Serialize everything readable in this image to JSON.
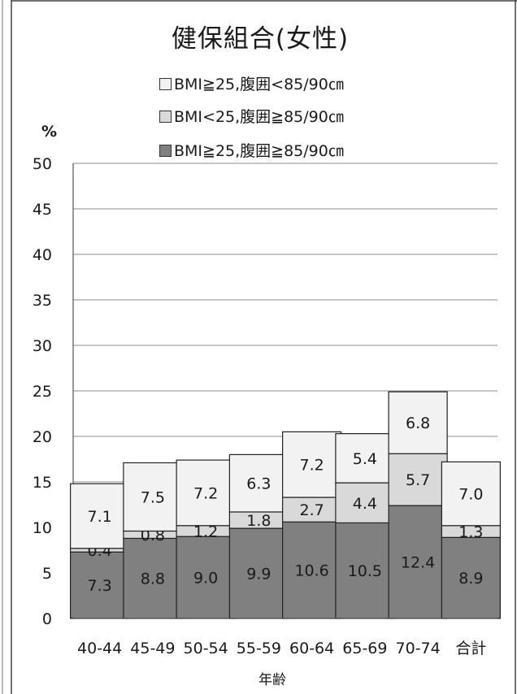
{
  "chart_data": {
    "type": "bar",
    "stacked": true,
    "title": "健保組合(女性)",
    "unit_label": "%",
    "xlabel": "年齢",
    "ylabel": "",
    "ylim": [
      0,
      50
    ],
    "yticks": [
      0,
      5,
      10,
      15,
      20,
      25,
      30,
      35,
      40,
      45,
      50
    ],
    "grid": true,
    "legend_position": "top",
    "categories": [
      "40-44",
      "45-49",
      "50-54",
      "55-59",
      "60-64",
      "65-69",
      "70-74",
      "合計"
    ],
    "series": [
      {
        "name": "BMI≧25,腹囲≧85/90㎝",
        "color": "#808080",
        "values": [
          7.3,
          8.8,
          9.0,
          9.9,
          10.6,
          10.5,
          12.4,
          8.9
        ]
      },
      {
        "name": "BMI<25,腹囲≧85/90㎝",
        "color": "#d9d9d9",
        "values": [
          0.4,
          0.8,
          1.2,
          1.8,
          2.7,
          4.4,
          5.7,
          1.3
        ]
      },
      {
        "name": "BMI≧25,腹囲<85/90㎝",
        "color": "#f2f2f2",
        "values": [
          7.1,
          7.5,
          7.2,
          6.3,
          7.2,
          5.4,
          6.8,
          7.0
        ]
      }
    ],
    "data_labels": [
      [
        "7.3",
        "8.8",
        "9.0",
        "9.9",
        "10.6",
        "10.5",
        "12.4",
        "8.9"
      ],
      [
        "0.4",
        "0.8",
        "1.2",
        "1.8",
        "2.7",
        "4.4",
        "5.7",
        "1.3"
      ],
      [
        "7.1",
        "7.5",
        "7.2",
        "6.3",
        "7.2",
        "5.4",
        "6.8",
        "7.0"
      ]
    ]
  }
}
